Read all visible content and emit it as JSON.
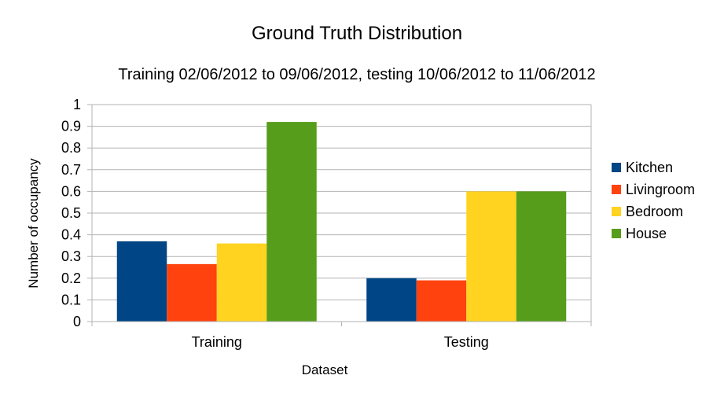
{
  "chart_data": {
    "type": "bar",
    "title": "Ground Truth Distribution",
    "subtitle": "Training 02/06/2012 to 09/06/2012, testing 10/06/2012 to 11/06/2012",
    "xlabel": "Dataset",
    "ylabel": "Number of occupancy",
    "categories": [
      "Training",
      "Testing"
    ],
    "ylim": [
      0,
      1
    ],
    "yticks": [
      "0",
      "0.1",
      "0.2",
      "0.3",
      "0.4",
      "0.5",
      "0.6",
      "0.7",
      "0.8",
      "0.9",
      "1"
    ],
    "grid": true,
    "legend": "right",
    "series": [
      {
        "name": "Kitchen",
        "color": "#004586",
        "values": [
          0.37,
          0.2
        ]
      },
      {
        "name": "Livingroom",
        "color": "#ff420e",
        "values": [
          0.265,
          0.19
        ]
      },
      {
        "name": "Bedroom",
        "color": "#ffd320",
        "values": [
          0.36,
          0.6
        ]
      },
      {
        "name": "House",
        "color": "#579d1c",
        "values": [
          0.92,
          0.6
        ]
      }
    ]
  }
}
